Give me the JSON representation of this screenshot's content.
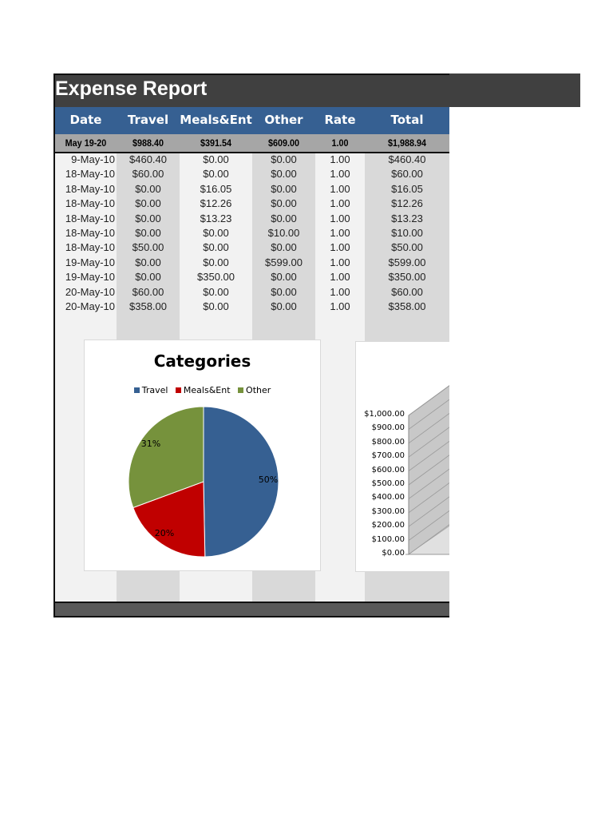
{
  "title": "Expense Report",
  "columns": [
    "Date",
    "Travel",
    "Meals&Ent",
    "Other",
    "Rate",
    "Total"
  ],
  "summary": {
    "date": "May 19-20",
    "travel": "$988.40",
    "meals": "$391.54",
    "other": "$609.00",
    "rate": "1.00",
    "total": "$1,988.94"
  },
  "rows": [
    {
      "date": "9-May-10",
      "travel": "$460.40",
      "meals": "$0.00",
      "other": "$0.00",
      "rate": "1.00",
      "total": "$460.40"
    },
    {
      "date": "18-May-10",
      "travel": "$60.00",
      "meals": "$0.00",
      "other": "$0.00",
      "rate": "1.00",
      "total": "$60.00"
    },
    {
      "date": "18-May-10",
      "travel": "$0.00",
      "meals": "$16.05",
      "other": "$0.00",
      "rate": "1.00",
      "total": "$16.05"
    },
    {
      "date": "18-May-10",
      "travel": "$0.00",
      "meals": "$12.26",
      "other": "$0.00",
      "rate": "1.00",
      "total": "$12.26"
    },
    {
      "date": "18-May-10",
      "travel": "$0.00",
      "meals": "$13.23",
      "other": "$0.00",
      "rate": "1.00",
      "total": "$13.23"
    },
    {
      "date": "18-May-10",
      "travel": "$0.00",
      "meals": "$0.00",
      "other": "$10.00",
      "rate": "1.00",
      "total": "$10.00"
    },
    {
      "date": "18-May-10",
      "travel": "$50.00",
      "meals": "$0.00",
      "other": "$0.00",
      "rate": "1.00",
      "total": "$50.00"
    },
    {
      "date": "19-May-10",
      "travel": "$0.00",
      "meals": "$0.00",
      "other": "$599.00",
      "rate": "1.00",
      "total": "$599.00"
    },
    {
      "date": "19-May-10",
      "travel": "$0.00",
      "meals": "$350.00",
      "other": "$0.00",
      "rate": "1.00",
      "total": "$350.00"
    },
    {
      "date": "20-May-10",
      "travel": "$60.00",
      "meals": "$0.00",
      "other": "$0.00",
      "rate": "1.00",
      "total": "$60.00"
    },
    {
      "date": "20-May-10",
      "travel": "$358.00",
      "meals": "$0.00",
      "other": "$0.00",
      "rate": "1.00",
      "total": "$358.00"
    }
  ],
  "colors": {
    "title_bg": "#404040",
    "header_bg": "#366092",
    "summary_bg": "#a6a6a6",
    "col_light": "#f2f2f2",
    "col_dark": "#d9d9d9",
    "footer_bg": "#595959"
  },
  "chart_data": [
    {
      "type": "pie",
      "title": "Categories",
      "categories": [
        "Travel",
        "Meals&Ent",
        "Other"
      ],
      "values": [
        988.4,
        391.54,
        609.0
      ],
      "labels": [
        "50%",
        "20%",
        "31%"
      ],
      "colors": [
        "#366092",
        "#c00000",
        "#76923c"
      ],
      "legend_position": "top"
    },
    {
      "type": "bar",
      "title": "",
      "yticks": [
        "$1,000.00",
        "$900.00",
        "$800.00",
        "$700.00",
        "$600.00",
        "$500.00",
        "$400.00",
        "$300.00",
        "$200.00",
        "$100.00",
        "$0.00"
      ],
      "ylim": [
        0,
        1000
      ],
      "grid": true,
      "note": "3D chart, partially cropped; only axis visible"
    }
  ]
}
